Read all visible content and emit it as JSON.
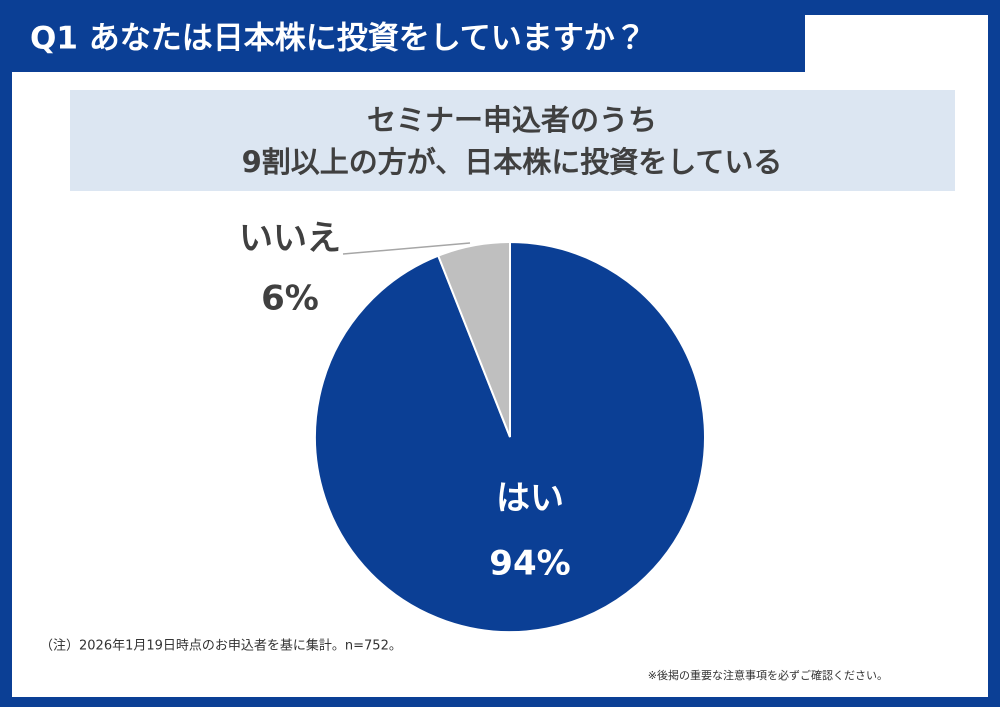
{
  "chart_data": {
    "type": "pie",
    "title": "Q1 あなたは日本株に投資をしていますか？",
    "subtitle_lines": [
      "セミナー申込者のうち",
      "9割以上の方が、日本株に投資をしている"
    ],
    "categories": [
      "はい",
      "いいえ"
    ],
    "values": [
      94,
      6
    ],
    "value_labels": [
      "94%",
      "6%"
    ],
    "colors": [
      "#0b3f95",
      "#bfbfbf"
    ],
    "note": "（注）2026年1月19日時点のお申込者を基に集計。n=752。",
    "disclaimer": "※後掲の重要な注意事項を必ずご確認ください。"
  }
}
